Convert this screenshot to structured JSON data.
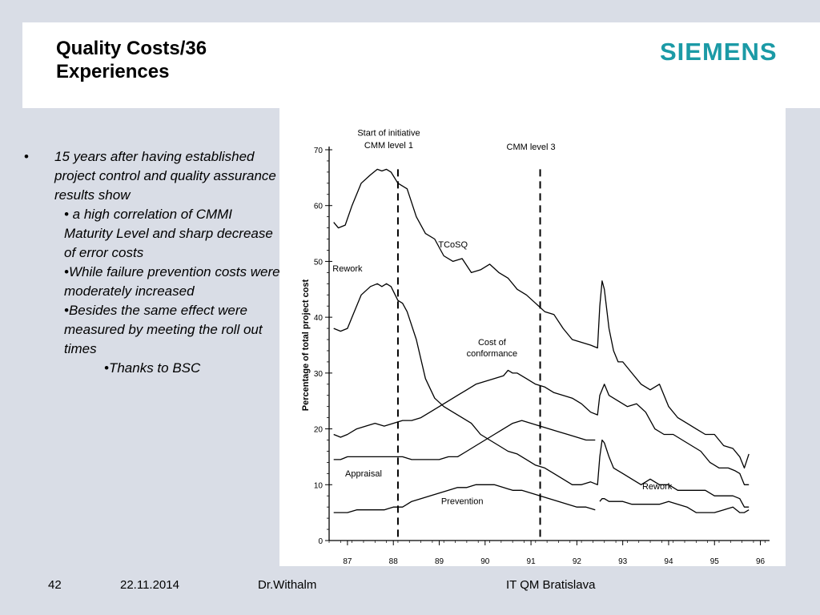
{
  "slide": {
    "title_line1": "Quality Costs/36",
    "title_line2": "Experiences",
    "logo_text": "SIEMENS",
    "logo_color": "#1b9aa6",
    "bullet_main": "15 years after having established project control and quality assurance results show",
    "sub_bullets": [
      "• a high correlation of CMMI Maturity Level and sharp decrease of error costs",
      "•While failure prevention costs were moderately increased",
      "•Besides the same effect were measured by meeting the roll out times"
    ],
    "sub_sub_bullet": "•Thanks to BSC"
  },
  "footer": {
    "page_number": "42",
    "date": "22.11.2014",
    "author": "Dr.Withalm",
    "org": "IT QM Bratislava"
  },
  "chart_data": {
    "type": "line",
    "ylabel": "Percentage of total project cost",
    "ylim": [
      0,
      70
    ],
    "yticks": [
      0,
      10,
      20,
      30,
      40,
      50,
      60,
      70
    ],
    "xlim": [
      86.6,
      96.2
    ],
    "xtick_labels": [
      "87",
      "88",
      "89",
      "90",
      "91",
      "92",
      "93",
      "94",
      "95",
      "96"
    ],
    "xtick_values": [
      87,
      88,
      89,
      90,
      91,
      92,
      93,
      94,
      95,
      96
    ],
    "annotations": [
      {
        "text": "Start of initiative",
        "x": 87.9,
        "y": 72.5
      },
      {
        "text": "CMM level 1",
        "x": 87.9,
        "y": 70.3
      },
      {
        "text": "CMM level 3",
        "x": 91.0,
        "y": 70.0
      }
    ],
    "vlines": [
      88.1,
      91.2
    ],
    "series": [
      {
        "name": "TCoSQ",
        "label_pos": [
          89.3,
          52.5
        ],
        "x": [
          86.7,
          86.8,
          86.95,
          87.1,
          87.3,
          87.5,
          87.65,
          87.75,
          87.85,
          87.95,
          88.1,
          88.2,
          88.3,
          88.5,
          88.7,
          88.9,
          89.1,
          89.3,
          89.5,
          89.7,
          89.9,
          90.1,
          90.3,
          90.5,
          90.7,
          90.9,
          91.1,
          91.3,
          91.5,
          91.7,
          91.9,
          92.1,
          92.3,
          92.45,
          92.5,
          92.55,
          92.6,
          92.7,
          92.8,
          92.9,
          93.0,
          93.2,
          93.4,
          93.6,
          93.8,
          94.0,
          94.2,
          94.4,
          94.6,
          94.8,
          95.0,
          95.2,
          95.4,
          95.55,
          95.65,
          95.75
        ],
        "values": [
          57,
          56,
          56.5,
          60,
          64,
          65.5,
          66.5,
          66.2,
          66.5,
          66,
          64,
          63.5,
          63,
          58,
          55,
          54,
          51,
          50,
          50.5,
          48,
          48.5,
          49.5,
          48,
          47,
          45,
          44,
          42.5,
          41,
          40.5,
          38,
          36,
          35.5,
          35,
          34.5,
          42,
          46.5,
          45,
          38,
          34,
          32,
          32,
          30,
          28,
          27,
          28,
          24,
          22,
          21,
          20,
          19,
          19,
          17,
          16.5,
          15,
          13,
          15.5
        ]
      },
      {
        "name": "Rework",
        "label_pos": [
          87.0,
          48.2
        ],
        "x": [
          86.7,
          86.85,
          87.0,
          87.1,
          87.3,
          87.5,
          87.65,
          87.75,
          87.85,
          87.95,
          88.1,
          88.2,
          88.3,
          88.5,
          88.7,
          88.9,
          89.1,
          89.3,
          89.5,
          89.7,
          89.9,
          90.1,
          90.3,
          90.5,
          90.7,
          90.9,
          91.1,
          91.3,
          91.5,
          91.7,
          91.9,
          92.1,
          92.3,
          92.45,
          92.5,
          92.55,
          92.6,
          92.7,
          92.8,
          93.0,
          93.2,
          93.4,
          93.6,
          93.8,
          94.0,
          94.2,
          94.4,
          94.6,
          94.8,
          95.0,
          95.2,
          95.4,
          95.55,
          95.65,
          95.75
        ],
        "values": [
          38,
          37.5,
          38,
          40,
          44,
          45.5,
          46,
          45.5,
          46,
          45.5,
          43,
          42.5,
          41,
          36,
          29,
          25.5,
          24,
          23,
          22,
          21,
          19,
          18,
          17,
          16,
          15.5,
          14.5,
          13.5,
          13,
          12,
          11,
          10,
          10,
          10.5,
          10,
          15,
          18,
          17.5,
          15,
          13,
          12,
          11,
          10,
          11,
          10,
          10,
          9,
          9,
          9,
          9,
          8,
          8,
          8,
          7.5,
          6,
          6
        ]
      },
      {
        "name": "Cost of conformance",
        "label_pos": [
          90.15,
          35.0
        ],
        "label_lines": [
          "Cost of",
          "conformance"
        ],
        "x": [
          86.7,
          86.85,
          87.0,
          87.2,
          87.4,
          87.6,
          87.8,
          88.0,
          88.2,
          88.4,
          88.6,
          88.8,
          89.0,
          89.2,
          89.4,
          89.6,
          89.8,
          90.0,
          90.2,
          90.4,
          90.5,
          90.6,
          90.7,
          90.9,
          91.1,
          91.3,
          91.5,
          91.7,
          91.9,
          92.1,
          92.3,
          92.45,
          92.5,
          92.6,
          92.7,
          92.9,
          93.1,
          93.3,
          93.5,
          93.7,
          93.9,
          94.1,
          94.3,
          94.5,
          94.7,
          94.9,
          95.1,
          95.3,
          95.45,
          95.55,
          95.65,
          95.75
        ],
        "values": [
          19,
          18.5,
          19,
          20,
          20.5,
          21,
          20.5,
          21,
          21.5,
          21.5,
          22,
          23,
          24,
          25,
          26,
          27,
          28,
          28.5,
          29,
          29.5,
          30.5,
          30,
          30,
          29,
          28,
          27.5,
          26.5,
          26,
          25.5,
          24.5,
          23,
          22.5,
          26,
          28,
          26,
          25,
          24,
          24.5,
          23,
          20,
          19,
          19,
          18,
          17,
          16,
          14,
          13,
          13,
          12.5,
          12,
          10,
          10
        ]
      },
      {
        "name": "Appraisal",
        "label_pos": [
          87.35,
          11.5
        ],
        "x": [
          86.7,
          86.85,
          87.0,
          87.2,
          87.4,
          87.6,
          87.8,
          88.0,
          88.2,
          88.4,
          88.6,
          88.8,
          89.0,
          89.2,
          89.4,
          89.6,
          89.8,
          90.0,
          90.2,
          90.4,
          90.6,
          90.8,
          91.0,
          91.2,
          91.4,
          91.6,
          91.8,
          92.0,
          92.2,
          92.4
        ],
        "values": [
          14.5,
          14.5,
          15,
          15,
          15,
          15,
          15,
          15,
          15,
          14.5,
          14.5,
          14.5,
          14.5,
          15,
          15,
          16,
          17,
          18,
          19,
          20,
          21,
          21.5,
          21,
          20.5,
          20,
          19.5,
          19,
          18.5,
          18,
          18
        ]
      },
      {
        "name": "Prevention",
        "label_pos": [
          89.5,
          6.5
        ],
        "x": [
          86.7,
          86.85,
          87.0,
          87.2,
          87.4,
          87.6,
          87.8,
          88.0,
          88.2,
          88.4,
          88.6,
          88.8,
          89.0,
          89.2,
          89.4,
          89.6,
          89.8,
          90.0,
          90.2,
          90.4,
          90.6,
          90.8,
          91.0,
          91.2,
          91.4,
          91.6,
          91.8,
          92.0,
          92.2,
          92.4
        ],
        "values": [
          5,
          5,
          5,
          5.5,
          5.5,
          5.5,
          5.5,
          6,
          6,
          7,
          7.5,
          8,
          8.5,
          9,
          9.5,
          9.5,
          10,
          10,
          10,
          9.5,
          9,
          9,
          8.5,
          8,
          7.5,
          7,
          6.5,
          6,
          6,
          5.5
        ]
      },
      {
        "name": "Rework",
        "label_pos": [
          93.75,
          9.2
        ],
        "x": [
          92.5,
          92.55,
          92.6,
          92.7,
          92.8,
          93.0,
          93.2,
          93.4,
          93.6,
          93.8,
          94.0,
          94.2,
          94.4,
          94.6,
          94.8,
          95.0,
          95.2,
          95.4,
          95.55,
          95.65,
          95.75
        ],
        "values": [
          7,
          7.5,
          7.5,
          7,
          7,
          7,
          6.5,
          6.5,
          6.5,
          6.5,
          7,
          6.5,
          6,
          5,
          5,
          5,
          5.5,
          6,
          5,
          5,
          5.5
        ]
      }
    ]
  }
}
